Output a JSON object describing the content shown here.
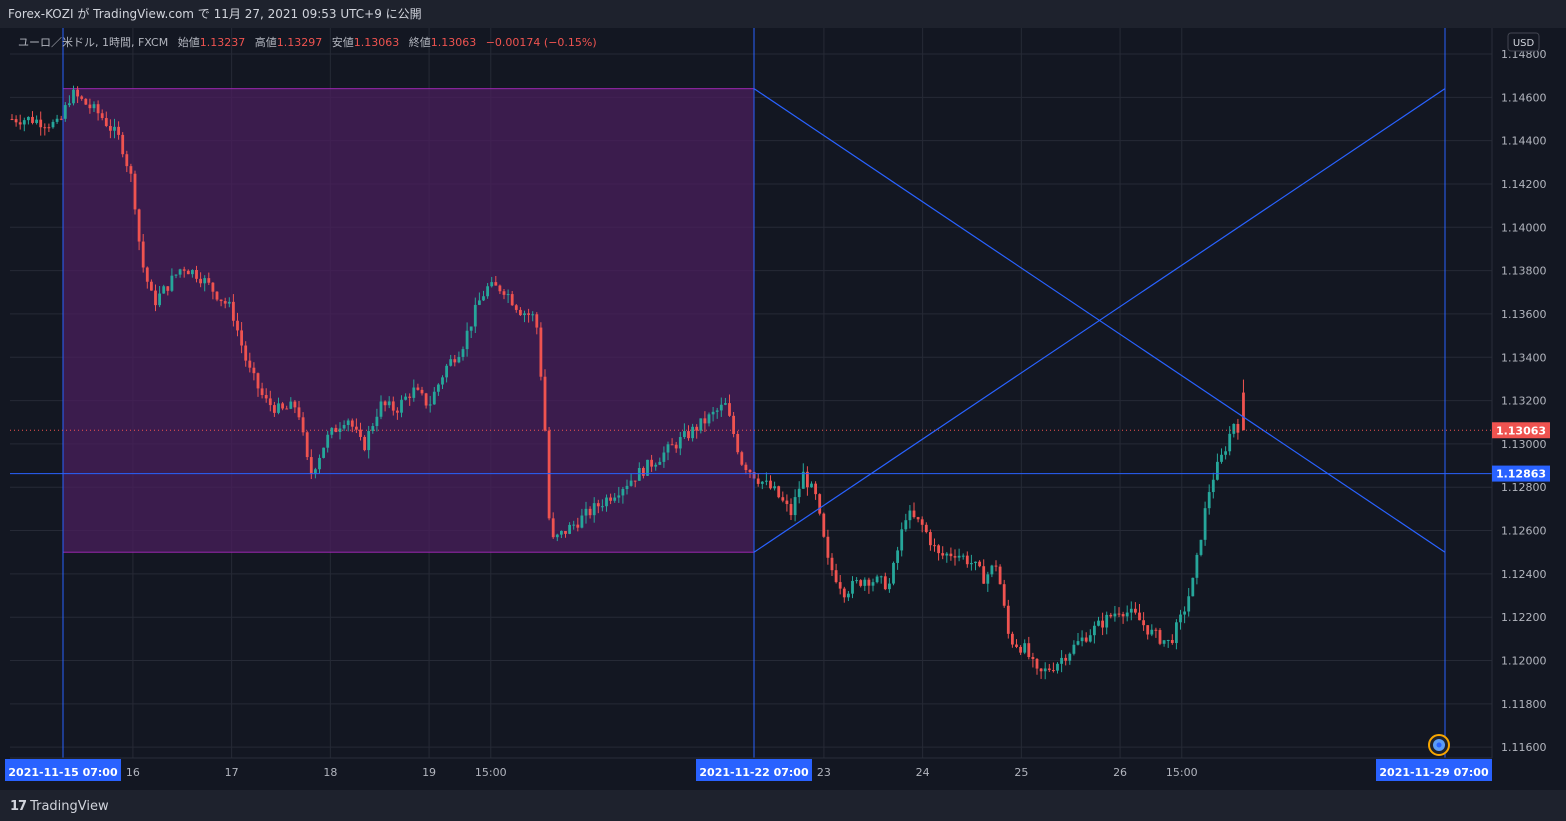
{
  "header": {
    "publish_line": "Forex-KOZI が TradingView.com で 11月 27, 2021 09:53 UTC+9 に公開"
  },
  "legend": {
    "symbol": "ユーロ／米ドル, 1時間, FXCM",
    "open_label": "始値",
    "open": "1.13237",
    "high_label": "高値",
    "high": "1.13297",
    "low_label": "安値",
    "low": "1.13063",
    "close_label": "終値",
    "close": "1.13063",
    "change": "−0.00174 (−0.15%)"
  },
  "currency_button": "USD",
  "footer": {
    "brand": "TradingView"
  },
  "colors": {
    "background": "#131722",
    "up": "#26a69a",
    "down": "#ef5350",
    "line": "#2962ff",
    "rect_border": "#9c27b0",
    "rect_fill": "#4a1f5c",
    "grid": "#262a36",
    "text": "#b2b5be"
  },
  "chart_data": {
    "type": "candlestick",
    "symbol": "EURUSD",
    "timeframe": "1時間",
    "ylim": [
      1.1155,
      1.1492
    ],
    "y_ticks": [
      "1.14800",
      "1.14600",
      "1.14400",
      "1.14200",
      "1.14000",
      "1.13800",
      "1.13600",
      "1.13400",
      "1.13200",
      "1.13000",
      "1.12800",
      "1.12600",
      "1.12400",
      "1.12200",
      "1.12000",
      "1.11800",
      "1.11600"
    ],
    "x_ticks": [
      {
        "label": "16",
        "date": "2021-11-16"
      },
      {
        "label": "17",
        "date": "2021-11-17"
      },
      {
        "label": "18",
        "date": "2021-11-18"
      },
      {
        "label": "19",
        "date": "2021-11-19"
      },
      {
        "label": "15:00",
        "date": "2021-11-19 15:00"
      },
      {
        "label": "23",
        "date": "2021-11-23"
      },
      {
        "label": "24",
        "date": "2021-11-24"
      },
      {
        "label": "25",
        "date": "2021-11-25"
      },
      {
        "label": "26",
        "date": "2021-11-26"
      },
      {
        "label": "15:00",
        "date": "2021-11-26 15:00"
      }
    ],
    "x_highlight_labels": [
      {
        "label": "2021-11-15   07:00",
        "date": "2021-11-15 07:00"
      },
      {
        "label": "2021-11-22   07:00",
        "date": "2021-11-22 07:00"
      },
      {
        "label": "2021-11-29   07:00",
        "date": "2021-11-29 07:00"
      }
    ],
    "price_labels": [
      {
        "value": "1.13063",
        "price": 1.13063,
        "color": "#ef5350",
        "style": "dotted"
      },
      {
        "value": "1.12863",
        "price": 1.12863,
        "color": "#2962ff",
        "style": "solid"
      }
    ],
    "range_box": {
      "start": "2021-11-15 07:00",
      "end": "2021-11-22 07:00",
      "high": 1.1464,
      "low": 1.125
    },
    "lines": [
      {
        "from": {
          "date": "2021-11-22 07:00",
          "price": 1.1464
        },
        "to": {
          "date": "2021-11-29 07:00",
          "price": 1.125
        }
      },
      {
        "from": {
          "date": "2021-11-22 07:00",
          "price": 1.125
        },
        "to": {
          "date": "2021-11-29 07:00",
          "price": 1.1464
        }
      }
    ],
    "vertical_lines": [
      "2021-11-15 07:00",
      "2021-11-22 07:00",
      "2021-11-29 07:00"
    ],
    "path": [
      [
        "2021-11-15 00:00",
        1.145
      ],
      [
        "2021-11-15 07:00",
        1.1447
      ],
      [
        "2021-11-15 10:00",
        1.1462
      ],
      [
        "2021-11-15 17:00",
        1.1452
      ],
      [
        "2021-11-15 22:00",
        1.144
      ],
      [
        "2021-11-16 01:00",
        1.142
      ],
      [
        "2021-11-16 03:00",
        1.1385
      ],
      [
        "2021-11-16 06:00",
        1.1365
      ],
      [
        "2021-11-16 09:00",
        1.1372
      ],
      [
        "2021-11-16 13:00",
        1.1382
      ],
      [
        "2021-11-16 17:00",
        1.1378
      ],
      [
        "2021-11-16 21:00",
        1.137
      ],
      [
        "2021-11-17 01:00",
        1.1362
      ],
      [
        "2021-11-17 05:00",
        1.1335
      ],
      [
        "2021-11-17 09:00",
        1.132
      ],
      [
        "2021-11-17 13:00",
        1.1315
      ],
      [
        "2021-11-17 17:00",
        1.1318
      ],
      [
        "2021-11-17 20:00",
        1.1285
      ],
      [
        "2021-11-18 00:00",
        1.1302
      ],
      [
        "2021-11-18 05:00",
        1.1313
      ],
      [
        "2021-11-18 09:00",
        1.1298
      ],
      [
        "2021-11-18 13:00",
        1.1318
      ],
      [
        "2021-11-18 17:00",
        1.1316
      ],
      [
        "2021-11-18 21:00",
        1.1325
      ],
      [
        "2021-11-19 01:00",
        1.1318
      ],
      [
        "2021-11-19 05:00",
        1.1335
      ],
      [
        "2021-11-19 09:00",
        1.1345
      ],
      [
        "2021-11-19 13:00",
        1.1365
      ],
      [
        "2021-11-19 15:00",
        1.1372
      ],
      [
        "2021-11-19 19:00",
        1.1372
      ],
      [
        "2021-11-19 23:00",
        1.1362
      ],
      [
        "2021-11-20 03:00",
        1.1358
      ],
      [
        "2021-11-20 05:00",
        1.1315
      ],
      [
        "2021-11-20 06:00",
        1.1268
      ],
      [
        "2021-11-20 07:00",
        1.1255
      ],
      [
        "2021-11-22 01:00",
        1.1318
      ],
      [
        "2021-11-22 05:00",
        1.1292
      ],
      [
        "2021-11-22 09:00",
        1.1284
      ],
      [
        "2021-11-22 13:00",
        1.1278
      ],
      [
        "2021-11-22 17:00",
        1.1268
      ],
      [
        "2021-11-22 20:00",
        1.1286
      ],
      [
        "2021-11-22 23:00",
        1.1275
      ],
      [
        "2021-11-23 02:00",
        1.1245
      ],
      [
        "2021-11-23 06:00",
        1.1232
      ],
      [
        "2021-11-23 11:00",
        1.1238
      ],
      [
        "2021-11-23 17:00",
        1.1235
      ],
      [
        "2021-11-23 21:00",
        1.1268
      ],
      [
        "2021-11-24 01:00",
        1.1262
      ],
      [
        "2021-11-24 05:00",
        1.1248
      ],
      [
        "2021-11-24 09:00",
        1.125
      ],
      [
        "2021-11-24 13:00",
        1.1245
      ],
      [
        "2021-11-24 16:00",
        1.1238
      ],
      [
        "2021-11-24 19:00",
        1.1245
      ],
      [
        "2021-11-24 22:00",
        1.121
      ],
      [
        "2021-11-25 02:00",
        1.1205
      ],
      [
        "2021-11-25 05:00",
        1.1193
      ],
      [
        "2021-11-25 09:00",
        1.1198
      ],
      [
        "2021-11-25 13:00",
        1.1205
      ],
      [
        "2021-11-25 17:00",
        1.1212
      ],
      [
        "2021-11-25 21:00",
        1.1218
      ],
      [
        "2021-11-26 01:00",
        1.1224
      ],
      [
        "2021-11-26 05:00",
        1.122
      ],
      [
        "2021-11-26 09:00",
        1.1212
      ],
      [
        "2021-11-26 13:00",
        1.1208
      ],
      [
        "2021-11-26 16:00",
        1.122
      ],
      [
        "2021-11-26 19:00",
        1.1238
      ],
      [
        "2021-11-26 21:00",
        1.1262
      ],
      [
        "2021-11-26 23:00",
        1.1282
      ],
      [
        "2021-11-27 02:00",
        1.1295
      ],
      [
        "2021-11-27 05:00",
        1.1312
      ],
      [
        "2021-11-27 06:00",
        1.1306
      ]
    ],
    "last_candle": {
      "open": 1.13237,
      "high": 1.13297,
      "low": 1.13063,
      "close": 1.13063
    }
  }
}
